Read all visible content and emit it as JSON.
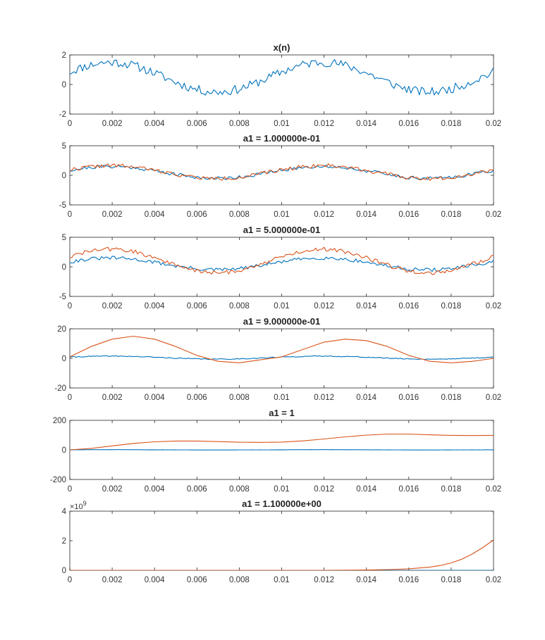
{
  "colors": {
    "series1": "#0072BD",
    "series2": "#D95319",
    "axis": "#262626"
  },
  "chart_data": [
    {
      "type": "line",
      "title": "x(n)",
      "xlim": [
        0,
        0.02
      ],
      "ylim": [
        -2,
        2
      ],
      "xticks": [
        "0",
        "0.002",
        "0.004",
        "0.006",
        "0.008",
        "0.01",
        "0.012",
        "0.014",
        "0.016",
        "0.018",
        "0.02"
      ],
      "yticks": [
        "-2",
        "0",
        "2"
      ],
      "series": [
        {
          "kind": "noisy",
          "amp": 1,
          "noise": 0.3,
          "seed": 11
        }
      ]
    },
    {
      "type": "line",
      "title": "a1 = 1.000000e-01",
      "xlim": [
        0,
        0.02
      ],
      "ylim": [
        -5,
        5
      ],
      "xticks": [
        "0",
        "0.002",
        "0.004",
        "0.006",
        "0.008",
        "0.01",
        "0.012",
        "0.014",
        "0.016",
        "0.018",
        "0.02"
      ],
      "yticks": [
        "-5",
        "0",
        "5"
      ],
      "series": [
        {
          "kind": "noisy",
          "amp": 1,
          "noise": 0.3,
          "seed": 21
        },
        {
          "kind": "noisy",
          "amp": 1.1,
          "noise": 0.33,
          "seed": 22
        }
      ]
    },
    {
      "type": "line",
      "title": "a1 = 5.000000e-01",
      "xlim": [
        0,
        0.02
      ],
      "ylim": [
        -5,
        5
      ],
      "xticks": [
        "0",
        "0.002",
        "0.004",
        "0.006",
        "0.008",
        "0.01",
        "0.012",
        "0.014",
        "0.016",
        "0.018",
        "0.02"
      ],
      "yticks": [
        "-5",
        "0",
        "5"
      ],
      "series": [
        {
          "kind": "noisy",
          "amp": 1,
          "noise": 0.3,
          "seed": 31
        },
        {
          "kind": "noisy",
          "amp": 2,
          "noise": 0.35,
          "seed": 32
        }
      ]
    },
    {
      "type": "line",
      "title": "a1 = 9.000000e-01",
      "xlim": [
        0,
        0.02
      ],
      "ylim": [
        -20,
        20
      ],
      "xticks": [
        "0",
        "0.002",
        "0.004",
        "0.006",
        "0.008",
        "0.01",
        "0.012",
        "0.014",
        "0.016",
        "0.018",
        "0.02"
      ],
      "yticks": [
        "-20",
        "0",
        "20"
      ],
      "series": [
        {
          "kind": "noisy",
          "amp": 1,
          "noise": 0.3,
          "seed": 41
        },
        {
          "kind": "points",
          "x": [
            0,
            0.001,
            0.002,
            0.003,
            0.004,
            0.005,
            0.006,
            0.007,
            0.008,
            0.009,
            0.01,
            0.011,
            0.012,
            0.013,
            0.014,
            0.015,
            0.016,
            0.017,
            0.018,
            0.019,
            0.02
          ],
          "y": [
            1,
            8,
            13,
            15,
            13,
            8,
            2,
            -2,
            -3,
            -1,
            1,
            6,
            11,
            13,
            12,
            8,
            2,
            -2,
            -3,
            -2,
            0
          ]
        }
      ]
    },
    {
      "type": "line",
      "title": "a1 = 1",
      "xlim": [
        0,
        0.02
      ],
      "ylim": [
        -200,
        200
      ],
      "xticks": [
        "0",
        "0.002",
        "0.004",
        "0.006",
        "0.008",
        "0.01",
        "0.012",
        "0.014",
        "0.016",
        "0.018",
        "0.02"
      ],
      "yticks": [
        "-200",
        "0",
        "200"
      ],
      "series": [
        {
          "kind": "noisy",
          "amp": 1,
          "noise": 0.3,
          "seed": 51
        },
        {
          "kind": "points",
          "x": [
            0,
            0.001,
            0.002,
            0.003,
            0.004,
            0.005,
            0.006,
            0.007,
            0.008,
            0.009,
            0.01,
            0.011,
            0.012,
            0.013,
            0.014,
            0.015,
            0.016,
            0.017,
            0.018,
            0.019,
            0.02
          ],
          "y": [
            0,
            10,
            27,
            44,
            55,
            60,
            60,
            56,
            52,
            51,
            53,
            61,
            74,
            88,
            100,
            107,
            107,
            102,
            98,
            97,
            98
          ]
        }
      ]
    },
    {
      "type": "line",
      "title": "a1 = 1.100000e+00",
      "exponent_label": "×10",
      "exponent_power": "9",
      "xlim": [
        0,
        0.02
      ],
      "ylim": [
        0,
        4
      ],
      "xticks": [
        "0",
        "0.002",
        "0.004",
        "0.006",
        "0.008",
        "0.01",
        "0.012",
        "0.014",
        "0.016",
        "0.018",
        "0.02"
      ],
      "yticks": [
        "0",
        "2",
        "4"
      ],
      "series": [
        {
          "kind": "zero"
        },
        {
          "kind": "points",
          "x": [
            0,
            0.012,
            0.014,
            0.015,
            0.016,
            0.017,
            0.0175,
            0.018,
            0.0185,
            0.019,
            0.0195,
            0.02
          ],
          "y": [
            0,
            0,
            0.02,
            0.05,
            0.1,
            0.22,
            0.33,
            0.5,
            0.75,
            1.1,
            1.55,
            2.05
          ]
        }
      ]
    }
  ]
}
